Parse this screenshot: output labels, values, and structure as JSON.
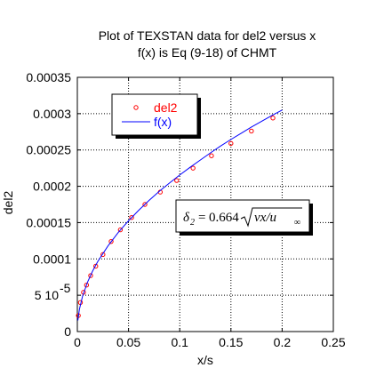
{
  "chart_data": {
    "type": "scatter",
    "title": "Plot of TEXSTAN data for del2 versus x",
    "subtitle": "f(x) is Eq (9-18) of CHMT",
    "xlabel": "x/s",
    "ylabel": "del2",
    "xlim": [
      0,
      0.25
    ],
    "ylim": [
      0,
      0.00035
    ],
    "grid": true,
    "legend_position": "top-left",
    "x_tick_labels": [
      "0",
      "0.05",
      "0.1",
      "0.15",
      "0.2",
      "0.25"
    ],
    "y_tick_labels": [
      "0",
      "5 10",
      "0.0001",
      "0.00015",
      "0.0002",
      "0.00025",
      "0.0003",
      "0.00035"
    ],
    "y_tick_exponent": "-5",
    "series": [
      {
        "name": "del2",
        "style": "markers",
        "color": "#ff0000",
        "x": [
          0.001,
          0.003,
          0.006,
          0.009,
          0.013,
          0.018,
          0.025,
          0.033,
          0.042,
          0.053,
          0.066,
          0.081,
          0.097,
          0.113,
          0.131,
          0.15,
          0.17,
          0.191
        ],
        "y": [
          2.2e-05,
          4e-05,
          5.4e-05,
          6.4e-05,
          7.7e-05,
          9e-05,
          0.000106,
          0.000124,
          0.00014,
          0.000157,
          0.000175,
          0.000192,
          0.000208,
          0.000225,
          0.000242,
          0.000259,
          0.000276,
          0.000294
        ]
      },
      {
        "name": "f(x)",
        "style": "line",
        "color": "#0000ff",
        "x": [
          0.0005,
          0.002,
          0.005,
          0.01,
          0.015,
          0.02,
          0.03,
          0.04,
          0.05,
          0.06,
          0.07,
          0.08,
          0.09,
          0.1,
          0.11,
          0.12,
          0.13,
          0.14,
          0.15,
          0.16,
          0.17,
          0.18,
          0.19,
          0.2
        ],
        "y": [
          1.53e-05,
          3.05e-05,
          4.82e-05,
          6.82e-05,
          8.35e-05,
          9.65e-05,
          0.000118,
          0.0001365,
          0.0001525,
          0.000167,
          0.0001805,
          0.000193,
          0.0002045,
          0.0002155,
          0.000226,
          0.000236,
          0.000246,
          0.0002555,
          0.0002645,
          0.000273,
          0.0002815,
          0.0002895,
          0.0002975,
          0.000305
        ]
      }
    ],
    "annotation": {
      "lhs": "δ",
      "lhs_sub": "2",
      "equals": "=",
      "coef": "0.664",
      "radicand": "νx/u",
      "radicand_sub": "∞"
    }
  }
}
